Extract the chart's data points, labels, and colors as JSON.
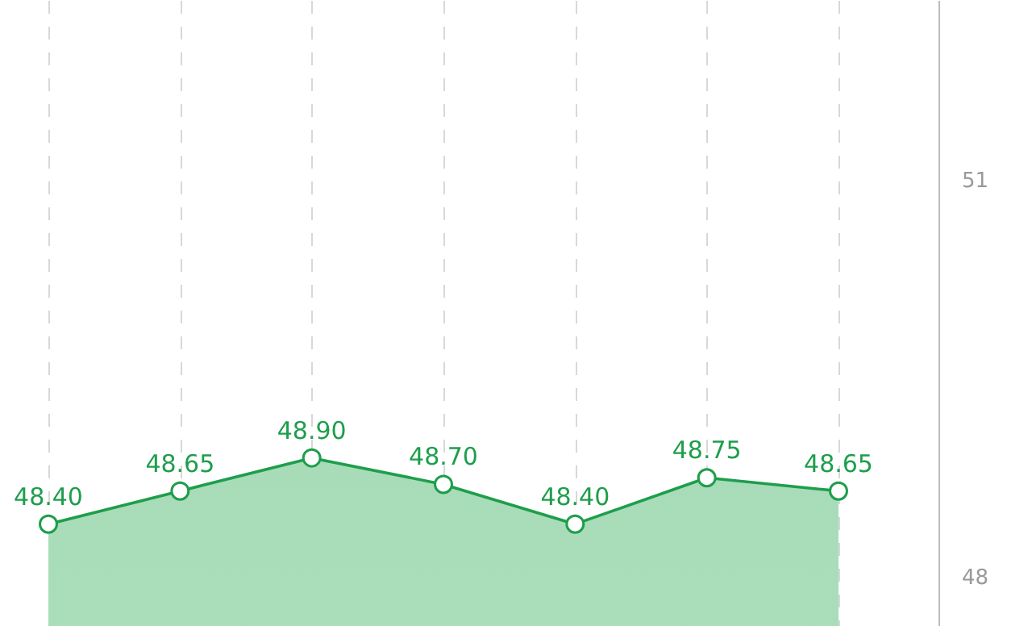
{
  "chart_data": {
    "type": "area",
    "categories": [
      null,
      null,
      null,
      null,
      null,
      null,
      null
    ],
    "series": [
      {
        "color": "#1e9e4c",
        "values": [
          48.4,
          48.65,
          48.9,
          48.7,
          48.4,
          48.75,
          48.65
        ],
        "value_labels": [
          "48.40",
          "48.65",
          "48.90",
          "48.70",
          "48.40",
          "48.75",
          "48.65"
        ]
      }
    ],
    "marker": "circle",
    "line_style": "solid",
    "grid": "x",
    "tick_labels": "y",
    "ylim": [
      47.63,
      52.36
    ],
    "yticks": [
      48,
      51
    ]
  }
}
